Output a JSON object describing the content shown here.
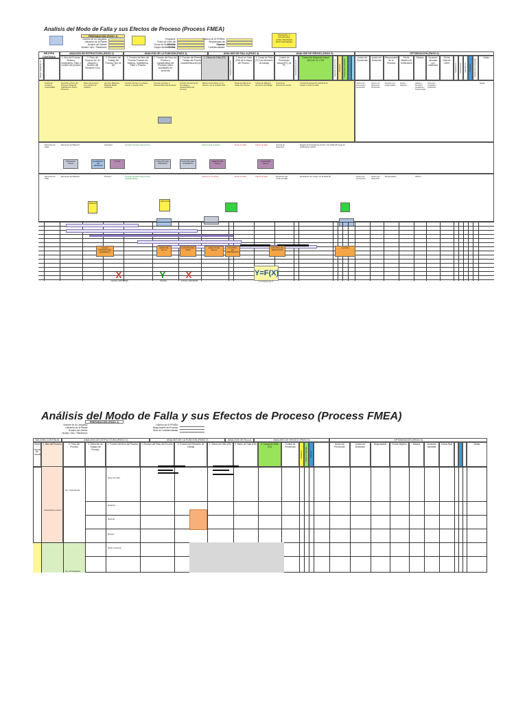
{
  "page1": {
    "title": "Analisis del Modo de Falla y sus Efectos de Proceso (Process FMEA)",
    "planning_header": "PREPARACIÓN (PASO 1)",
    "top_right_note": "PROCESO: X\nCOLOR AZUL\nAVISO: REVISIÓN\nTEXTO EN NEGRO",
    "info_left_labels": [
      "Nombre de la Compañía:",
      "Ubicación de la Planta:",
      "Nombre del Cliente:",
      "Modelo / Año / Plataforma:"
    ],
    "info_mid_labels": [
      "Programa:",
      "Fecha de Inicio del PFMEA:",
      "Fecha de Revisión del PFMEA:",
      "Equipo Multifuncional:"
    ],
    "info_right_labels": [
      "Número de ID PFMEA:",
      "Responsable del Proceso:",
      "Nivel de Confidencialidad:"
    ],
    "band_labels": {
      "historial": "MEJORA CONTINUA",
      "estructura": "ANALISIS DE ESTRUCTURA (PASO 2)",
      "funcion": "ANALISIS DE LA FUNCION (PASO 3)",
      "falla": "ANALISIS DE FALLA (PASO 4)",
      "riesgo": "ANALISIS DE RIESGO (PASO 5)",
      "optimizacion": "OPTIMIZACIÓN (PASO 6)"
    },
    "column_headers": [
      "Historial / Aprobación de Cambios (cuando aplique)",
      "1. Ítem del Proceso Sistema, Subsistema, Parte o nombre del proceso",
      "2. Paso del Proceso No. de Estación y Nombre del Elemento Foco",
      "3. Elemento del Trabajo del Proceso Tipo de 4M",
      "1. Función del Ítem del Proceso Función del Sistema, Subsistema, Parte o Proceso",
      "2. Función del Paso del Proceso y Característica del Producto (Valor cuantitativo es opcional)",
      "3. Función del Elemento de Trabajo del Proceso y Característica del proceso",
      "1. Efecto de Falla (FE)",
      "Severidad (S) del FE",
      "2. Modo de Falla (FM) de la etapa del Proceso",
      "3. Causa de Falla (FC) del elemento de trabajo",
      "Control de Prevención Actual (PC) de FC",
      "Ocurrencia (O) de FC",
      "Control de Detección Actual (DC) de FC o FM",
      "Detección (D) de FC/FM",
      "PFMEA AP",
      "Características Especiales",
      "Acción de Prevención",
      "Acción de Detección",
      "Responsable de la Persona",
      "Fecha Objetivo de Terminación",
      "Estatus",
      "Acciones tomadas con evidencia",
      "Fecha Real de Cierre",
      "Severidad (S)",
      "Ocurrencia (O)",
      "Detección (D)",
      "PFMEA AP",
      "Características Especiales",
      "Notas"
    ],
    "row1": {
      "historial": "Fecha de cambio y responsable",
      "item": "Describa el Ítem del Proceso (Sistema, Subsistema, Parte, Proceso)",
      "paso": "Paso del proceso con número de estación",
      "elemento": "Hombre Máquina Material Medio Ambiente",
      "funcion_item": "Función del ítem en planta, cliente y usuario final",
      "funcion_paso": "Función del paso y característica del producto",
      "funcion_elemento": "Función del elemento de trabajo y característica del proceso",
      "efecto": "Efecto en la planta, en el cliente y en el usuario final",
      "modo": "Modo de falla de la etapa del proceso",
      "causa": "Causa de falla del elemento de trabajo",
      "prevencion": "Control de prevención actual",
      "deteccion": "Control de detección actual de la causa o modo de falla",
      "accion_prev": "Acción de prevención propuesta",
      "accion_det": "Acción de detección propuesta",
      "responsable": "Nombre del responsable",
      "fecha": "Fecha objetivo",
      "estatus": "Abierto / Decisión pendiente / Implementado",
      "acciones": "Acciones tomadas y evidencia",
      "notas": "Notas"
    },
    "row2": {
      "item": "Elemento de Falla",
      "paso": "Elemento del Maestro",
      "elemento": "Operador",
      "funcion_paso": "Función del paso del proceso",
      "efecto": "Efecto para la planta",
      "modo": "Modo de falla",
      "causa": "Causa de falla",
      "deteccion": "Control de detección",
      "riesgo_note": "Reglas de Prioridad de Acción: Ver Tabla AP, Hoja de Calificación S/O/D"
    },
    "row3": {
      "item": "Elemento de Falla",
      "paso": "Elemento del Maestro",
      "elemento": "Proceso",
      "funcion_paso": "Función del paso del proceso (característica)",
      "efecto": "Efecto en el cliente",
      "modo": "Modo de falla",
      "causa": "Causa de falla",
      "deteccion": "Detección del modo de falla",
      "riesgo_note": "Evaluación de riesgo con la tabla AP",
      "accion_prev": "Acción de prevención",
      "accion_det": "Acción de detección",
      "responsable": "Responsable",
      "estatus": "Abierto"
    },
    "chips": {
      "estructura_1": "PROCESO FOCO",
      "estructura_2": "ELEMENTO DE TRABAJO",
      "estructura_3": "FOCO",
      "funcion_1": "FUNCIÓN DEL PROCESO",
      "funcion_2": "FUNCIÓN DEL ELEMENTO",
      "falla_1": "EFECTO DE FALLA",
      "falla_2": "CAUSA DE FALLA",
      "green_1": "RESULTADO",
      "green_2": "RESULTADO",
      "orange_1": "CAUSA / FUNCIÓN DEL ELEMENTO",
      "orange_2": "MODO DE FALLA",
      "orange_3": "FUNCIÓN DEL PASO",
      "orange_4": "EFECTO DE FALLA",
      "orange_5": "CONTROL DE PREVENCIÓN",
      "orange_6": "CONTROL DE DETECCIÓN",
      "orange_7": "ACCIÓN"
    },
    "x_label_1": "X",
    "y_label": "Y",
    "x_label_2": "X",
    "formula": "Y=F(X)",
    "x_caption_1": "CAUSA / ENTRADA",
    "y_caption": "SALIDA",
    "x_caption_2": "CAUSA / ENTRADA",
    "formula_caption": "Y es función de X"
  },
  "page2": {
    "title": "Análisis del Modo de Falla y sus Efectos de Proceso (Process FMEA)",
    "planning_header": "PREPARACIÓN (PASO 1)",
    "info_labels": [
      "Nombre de la Compañía:",
      "Ubicación de la Planta:",
      "Nombre del Cliente:",
      "Modelo / Año / Plataforma:"
    ],
    "info_mid_labels": [
      "Número de ID PFMEA:",
      "Responsable del Proceso:",
      "Nivel de Confidencialidad:"
    ],
    "band_labels": {
      "historial": "MEJORA CONTINUA",
      "estructura": "ANALISIS DE ESTRUCTURA (PASO 2)",
      "funcion": "ANALISIS DE LA FUNCION (PASO 3)",
      "falla": "ANALISIS DE FALLA (PASO 4)",
      "riesgo": "ANALISIS DE RIESGO (PASO 5)",
      "optimizacion": "OPTIMIZACIÓN (PASO 6)"
    },
    "column_headers": [
      "Historial / Aprobación de Cambios",
      "1. Ítem del Proceso",
      "2. Paso del Proceso",
      "3. Elemento de Trabajo del Proceso",
      "1. Función del Ítem del Proceso",
      "2. Función del Paso del Proceso",
      "3. Función del Elemento de Trabajo",
      "1. Efecto de Falla (FE)",
      "2. Modo de Falla (FM)",
      "3. Causa de Falla (FC)",
      "Control de Prevención",
      "Ocurrencia",
      "Control de Detección",
      "Detección",
      "Acción de Prevención",
      "Acción de Detección",
      "Responsable",
      "Fecha Objetivo",
      "Estatus",
      "Acciones tomadas",
      "Fecha Real",
      "Notas"
    ],
    "item_text": "Ensamble de puerta",
    "step_text": "Op. 10 Ensamble",
    "element_1": "Mano de Obra",
    "element_2": "Máquina",
    "element_3": "Material",
    "element_4": "Método",
    "element_5": "Medio ambiente",
    "step_2": "Op. 20 Soldadura"
  }
}
